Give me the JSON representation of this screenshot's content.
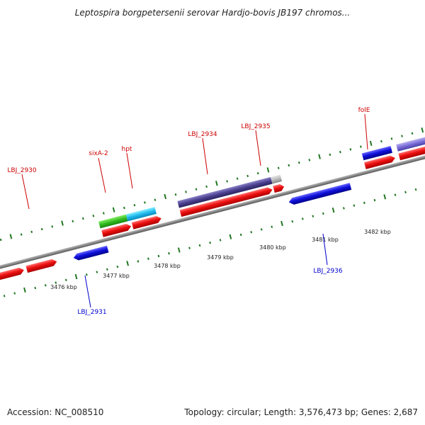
{
  "title": "Leptospira borgpetersenii serovar Hardjo-bovis JB197 chromos...",
  "footer": {
    "accession": "Accession: NC_008510",
    "topology": "Topology: circular; Length: 3,576,473 bp; Genes: 2,687"
  },
  "scale_labels": [
    "3476 kbp",
    "3477 kbp",
    "3478 kbp",
    "3479 kbp",
    "3480 kbp",
    "3481 kbp",
    "3482 kbp"
  ],
  "gene_labels_forward": [
    "LBJ_2930",
    "sixA-2",
    "hpt",
    "LBJ_2934",
    "LBJ_2935",
    "folE"
  ],
  "gene_labels_reverse": [
    "LBJ_2931",
    "LBJ_2936"
  ],
  "colors": {
    "forward_cds": "#ee1111",
    "reverse_cds": "#1111dd",
    "backbone": "#888888",
    "tick": "#227722",
    "label_forward": "#cc0000",
    "label_reverse": "#0000cc"
  }
}
